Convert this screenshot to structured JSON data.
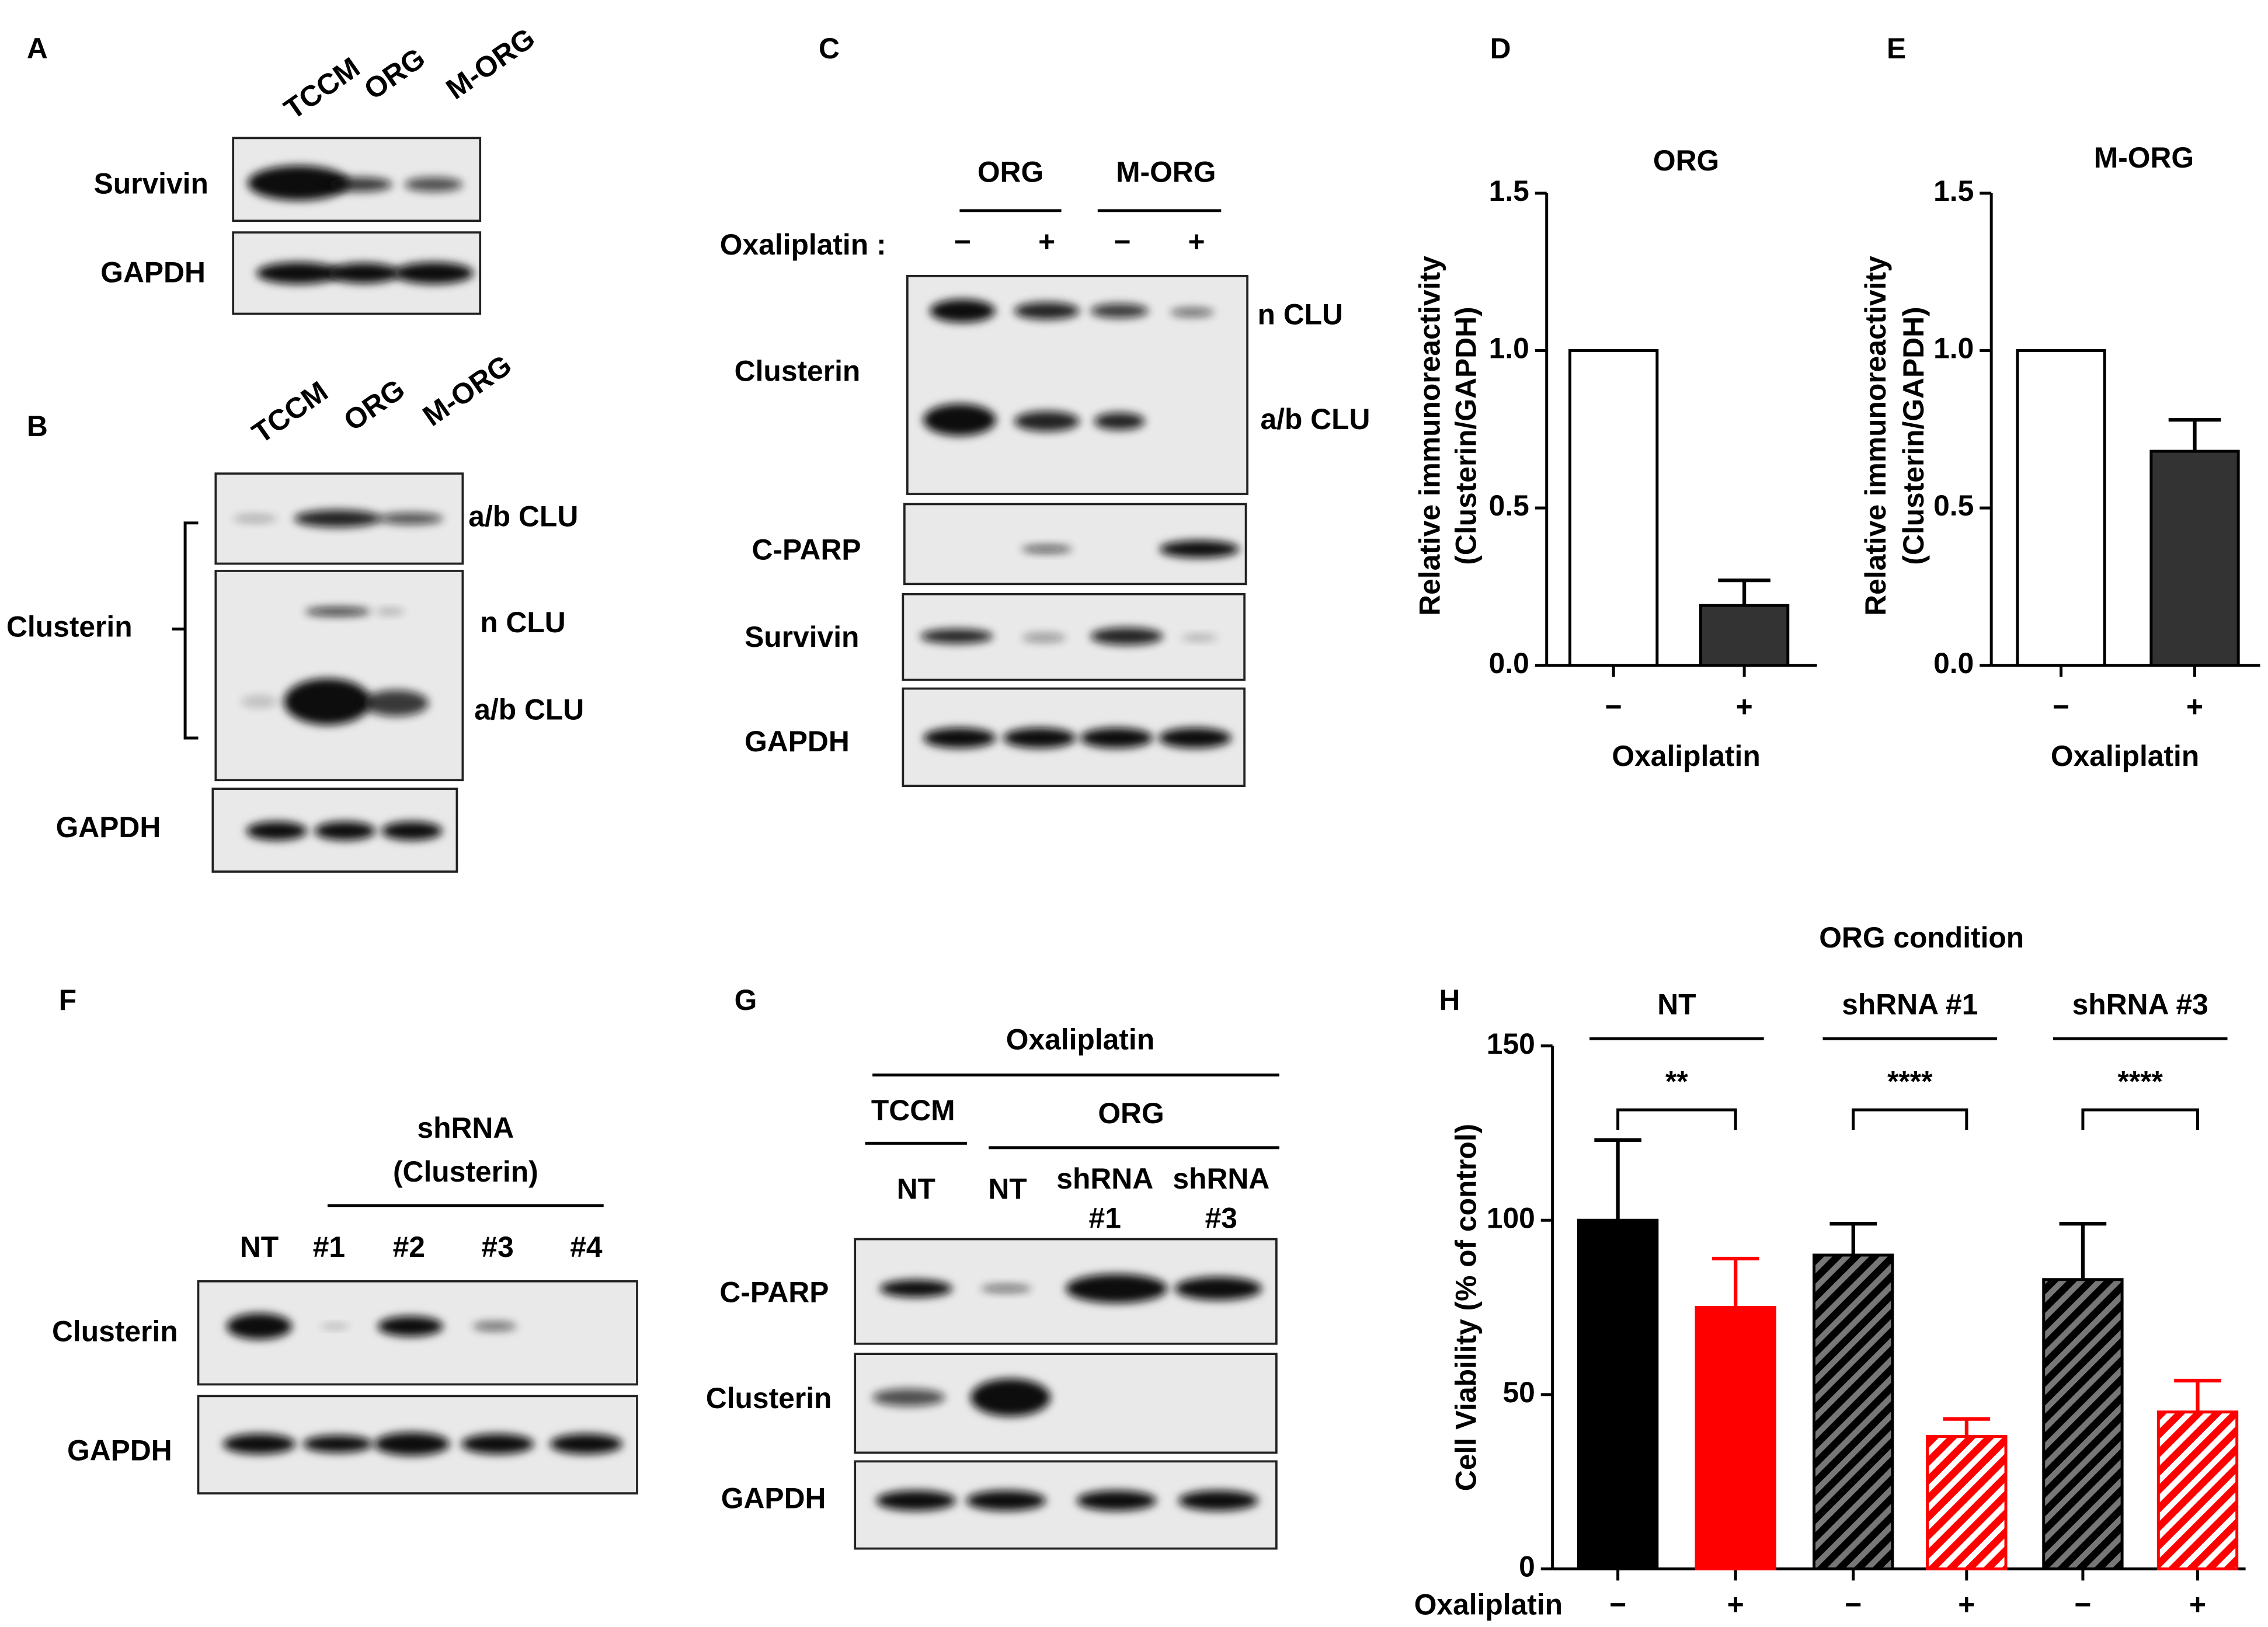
{
  "panels": {
    "A": {
      "letter": "A",
      "lanes": [
        "TCCM",
        "ORG",
        "M-ORG"
      ],
      "rows": [
        "Survivin",
        "GAPDH"
      ]
    },
    "B": {
      "letter": "B",
      "lanes": [
        "TCCM",
        "ORG",
        "M-ORG"
      ],
      "group": "Clusterin",
      "band_labels": [
        "a/b CLU",
        "n CLU",
        "a/b CLU"
      ],
      "rows": [
        "GAPDH"
      ]
    },
    "C": {
      "letter": "C",
      "groups": [
        "ORG",
        "M-ORG"
      ],
      "treatment": "Oxaliplatin :",
      "signs": [
        "−",
        "+",
        "−",
        "+"
      ],
      "rows": [
        "Clusterin",
        "C-PARP",
        "Survivin",
        "GAPDH"
      ],
      "band_labels": [
        "n CLU",
        "a/b CLU"
      ]
    },
    "D": {
      "letter": "D"
    },
    "E": {
      "letter": "E"
    },
    "F": {
      "letter": "F",
      "header": [
        "shRNA",
        "(Clusterin)"
      ],
      "lanes": [
        "NT",
        "#1",
        "#2",
        "#3",
        "#4"
      ],
      "rows": [
        "Clusterin",
        "GAPDH"
      ]
    },
    "G": {
      "letter": "G",
      "treatment": "Oxaliplatin",
      "groups": [
        "TCCM",
        "ORG"
      ],
      "lanes": [
        [
          "NT"
        ],
        [
          "NT"
        ],
        [
          "shRNA",
          "#1"
        ],
        [
          "shRNA",
          "#3"
        ]
      ],
      "rows": [
        "C-PARP",
        "Clusterin",
        "GAPDH"
      ]
    },
    "H": {
      "letter": "H"
    }
  },
  "chart_data": [
    {
      "type": "bar",
      "title": "ORG",
      "y_label": [
        "Relative immunoreactivity",
        "(Clusterin/GAPDH)"
      ],
      "x_label": "Oxaliplatin",
      "categories": [
        "−",
        "+"
      ],
      "values": [
        1.0,
        0.19
      ],
      "errors": [
        null,
        0.08
      ],
      "colors": [
        "#ffffff",
        "#333333"
      ],
      "ylim": [
        0,
        1.5
      ],
      "yticks": [
        {
          "value": 0,
          "label": "0.0"
        },
        {
          "value": 0.5,
          "label": "0.5"
        },
        {
          "value": 1,
          "label": "1.0"
        },
        {
          "value": 1.5,
          "label": "1.5"
        }
      ]
    },
    {
      "type": "bar",
      "title": "M-ORG",
      "y_label": [
        "Relative immunoreactivity",
        "(Clusterin/GAPDH)"
      ],
      "x_label": "Oxaliplatin",
      "categories": [
        "−",
        "+"
      ],
      "values": [
        1.0,
        0.68
      ],
      "errors": [
        null,
        0.1
      ],
      "colors": [
        "#ffffff",
        "#333333"
      ],
      "ylim": [
        0,
        1.5
      ],
      "yticks": [
        {
          "value": 0,
          "label": "0.0"
        },
        {
          "value": 0.5,
          "label": "0.5"
        },
        {
          "value": 1,
          "label": "1.0"
        },
        {
          "value": 1.5,
          "label": "1.5"
        }
      ]
    },
    {
      "type": "bar",
      "title": "ORG condition",
      "y_label": "Cell Viability (% of control)",
      "x_label": "Oxaliplatin",
      "groups": [
        "NT",
        "shRNA #1",
        "shRNA #3"
      ],
      "significance": [
        "**",
        "****",
        "****"
      ],
      "categories": [
        "−",
        "+",
        "−",
        "+",
        "−",
        "+"
      ],
      "values": [
        100,
        75,
        90,
        38,
        83,
        45
      ],
      "errors": [
        23,
        14,
        9,
        5,
        16,
        9
      ],
      "colors": [
        "#000000",
        "#ff0000",
        "#000000",
        "#ff0000",
        "#000000",
        "#ff0000"
      ],
      "hatched": [
        false,
        false,
        true,
        true,
        true,
        true
      ],
      "ylim": [
        0,
        150
      ],
      "yticks": [
        0,
        50,
        100,
        150
      ]
    }
  ]
}
